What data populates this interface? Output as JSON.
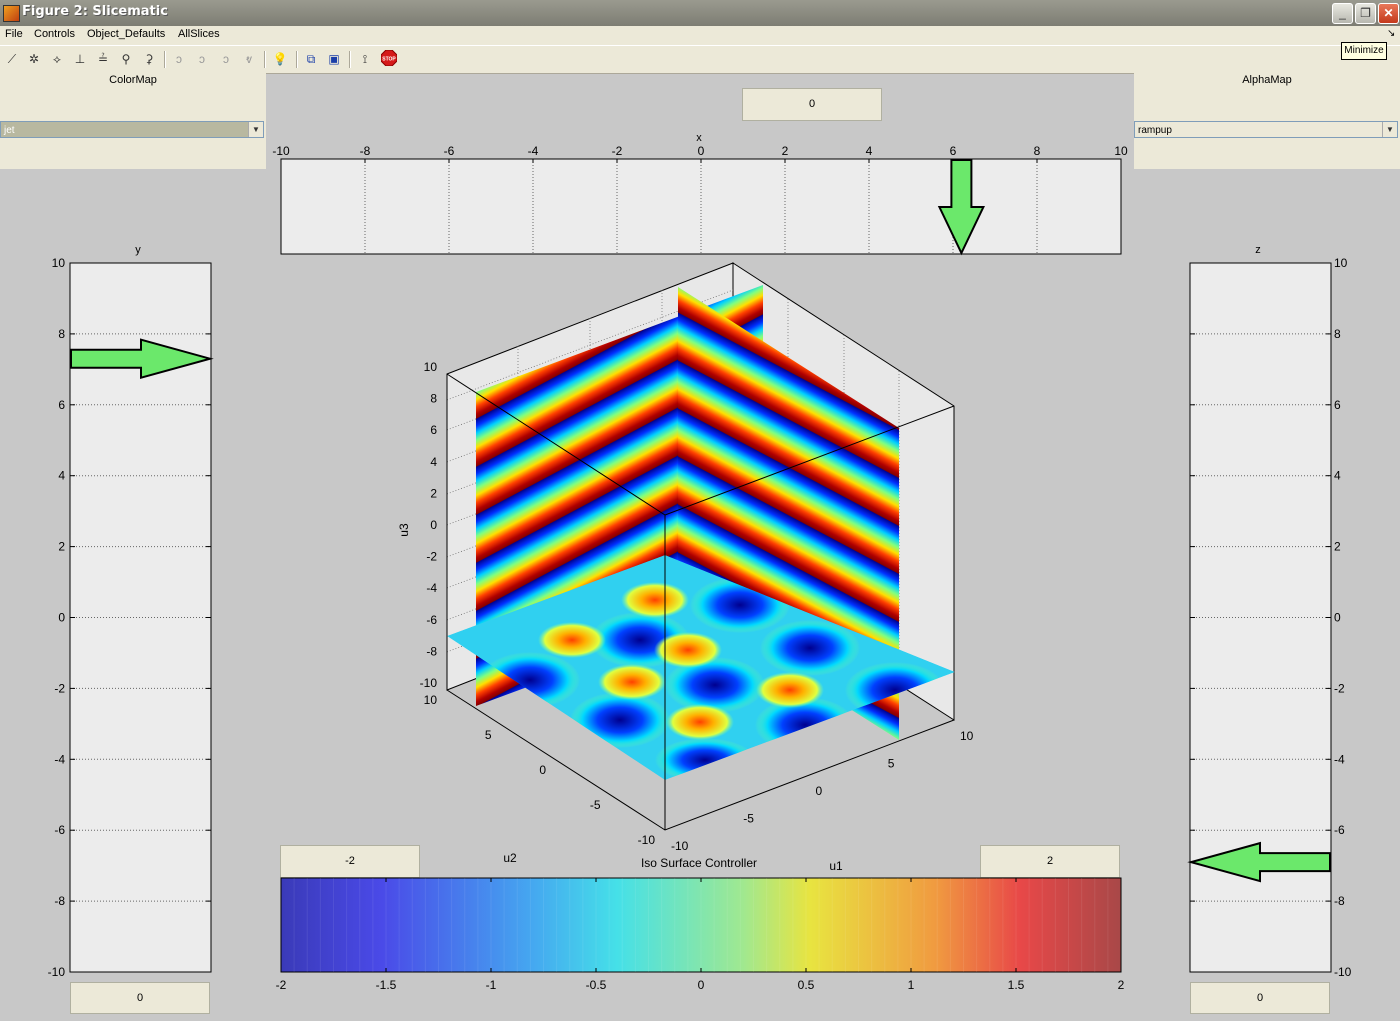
{
  "window": {
    "title": "Figure 2: Slicematic",
    "minimize_tooltip": "Minimize"
  },
  "menu": [
    "File",
    "Controls",
    "Object_Defaults",
    "AllSlices"
  ],
  "toolbar": {
    "icons": [
      "slice-x-icon",
      "slice-y-icon",
      "slice-z-icon",
      "slice-tool-icon",
      "slice-tool-icon",
      "slice-tool-icon",
      "slice-tool-icon",
      "isosurface-tool-icon",
      "isosurface-tool-icon",
      "isosurface-tool-icon",
      "isosurface-tool-icon",
      "light-bulb-icon",
      "cube-view-icon",
      "texture-view-icon",
      "animate-icon",
      "stop-icon"
    ]
  },
  "colormap": {
    "label": "ColorMap",
    "value": "jet"
  },
  "alphamap": {
    "label": "AlphaMap",
    "value": "rampup"
  },
  "x_slider": {
    "label": "x",
    "value": "0",
    "ticks": [
      "-10",
      "-8",
      "-6",
      "-4",
      "-2",
      "0",
      "2",
      "4",
      "6",
      "8",
      "10"
    ],
    "arrow_at": 6.2
  },
  "y_slider": {
    "label": "y",
    "value": "0",
    "ticks": [
      "10",
      "8",
      "6",
      "4",
      "2",
      "0",
      "-2",
      "-4",
      "-6",
      "-8",
      "-10"
    ],
    "arrow_at": 7.3
  },
  "z_slider": {
    "label": "z",
    "value": "0",
    "ticks": [
      "10",
      "8",
      "6",
      "4",
      "2",
      "0",
      "-2",
      "-4",
      "-6",
      "-8",
      "-10"
    ],
    "arrow_at": -6.9
  },
  "axes3d": {
    "zlabel": "u3",
    "xlabel": "u1",
    "ylabel": "u2",
    "zticks": [
      "10",
      "8",
      "6",
      "4",
      "2",
      "0",
      "-2",
      "-4",
      "-6",
      "-8",
      "-10"
    ],
    "u2ticks": [
      "10",
      "5",
      "0",
      "-5",
      "-10"
    ],
    "u1ticks": [
      "-10",
      "-5",
      "0",
      "5",
      "10"
    ]
  },
  "iso": {
    "title": "Iso Surface Controller",
    "min": "-2",
    "max": "2",
    "ticks": [
      "-2",
      "-1.5",
      "-1",
      "-0.5",
      "0",
      "0.5",
      "1",
      "1.5",
      "2"
    ]
  },
  "colors": {
    "panel": "#ece9d8",
    "figure_bg": "#c8c8c8",
    "arrow": "#6be86b"
  }
}
